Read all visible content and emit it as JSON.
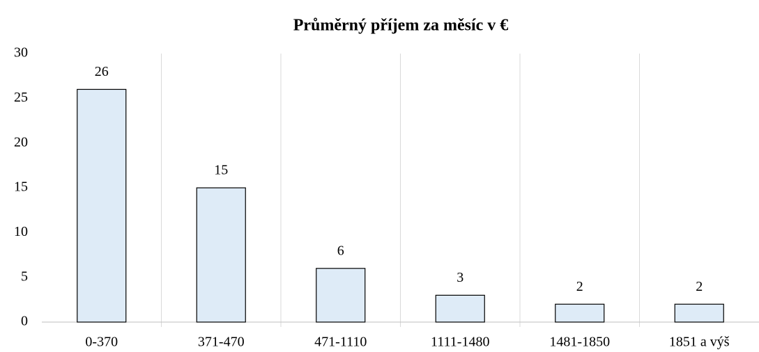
{
  "chart_data": {
    "type": "bar",
    "title": "Průměrný příjem za měsíc v €",
    "categories": [
      "0-370",
      "371-470",
      "471-1110",
      "1111-1480",
      "1481-1850",
      "1851 a výš"
    ],
    "values": [
      26,
      15,
      6,
      3,
      2,
      2
    ],
    "color": "#deebf7",
    "ylim": [
      0,
      30
    ],
    "yticks": [
      0,
      5,
      10,
      15,
      20,
      25,
      30
    ]
  }
}
